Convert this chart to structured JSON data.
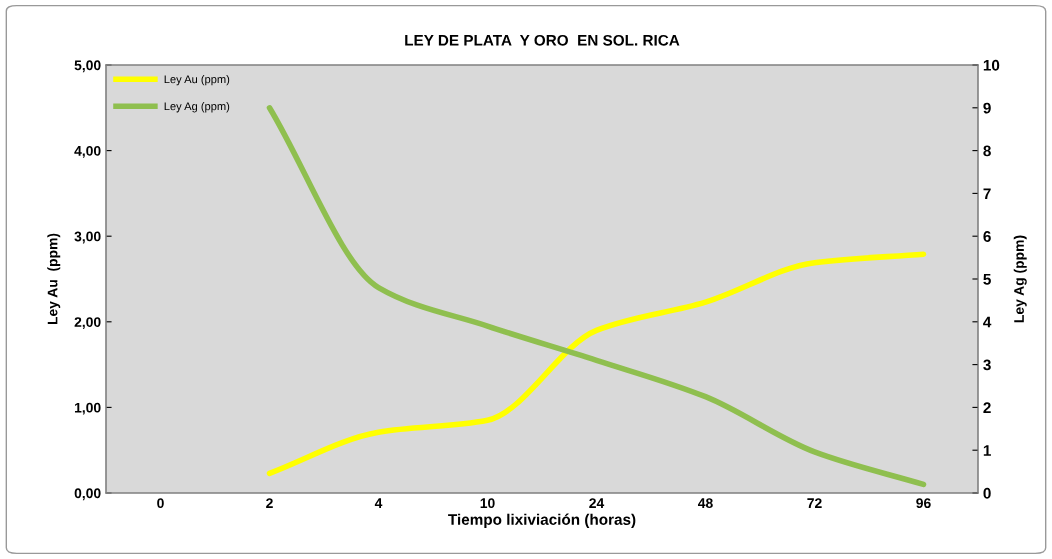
{
  "chart_data": {
    "type": "line",
    "title": "LEY DE PLATA  Y ORO  EN SOL. RICA",
    "xlabel": "Tiempo lixiviación (horas)",
    "ylabel": "Ley Au  (ppm)",
    "y2label": "Ley Ag (ppm)",
    "categories": [
      "0",
      "2",
      "4",
      "10",
      "24",
      "48",
      "72",
      "96"
    ],
    "series": [
      {
        "name": "Ley Au (ppm)",
        "color": "#ffff00",
        "values": [
          null,
          0.23,
          0.71,
          0.85,
          1.9,
          2.23,
          2.69,
          2.79
        ]
      },
      {
        "name": "Ley Ag (ppm)",
        "color": "#8fbf4f",
        "axis": "y2",
        "values": [
          null,
          9.0,
          4.8,
          3.9,
          3.1,
          2.25,
          0.96,
          0.2
        ]
      }
    ],
    "ylim": [
      0,
      5
    ],
    "yticks": [
      {
        "value": 0,
        "label": "0,00"
      },
      {
        "value": 1,
        "label": "1,00"
      },
      {
        "value": 2,
        "label": "2,00"
      },
      {
        "value": 3,
        "label": "3,00"
      },
      {
        "value": 4,
        "label": "4,00"
      },
      {
        "value": 5,
        "label": "5,00"
      }
    ],
    "y2lim": [
      0,
      10
    ],
    "y2ticks": [
      0,
      1,
      2,
      3,
      4,
      5,
      6,
      7,
      8,
      9,
      10
    ],
    "grid": false,
    "legend": "top left",
    "marker": "none",
    "line_style": "solid"
  }
}
